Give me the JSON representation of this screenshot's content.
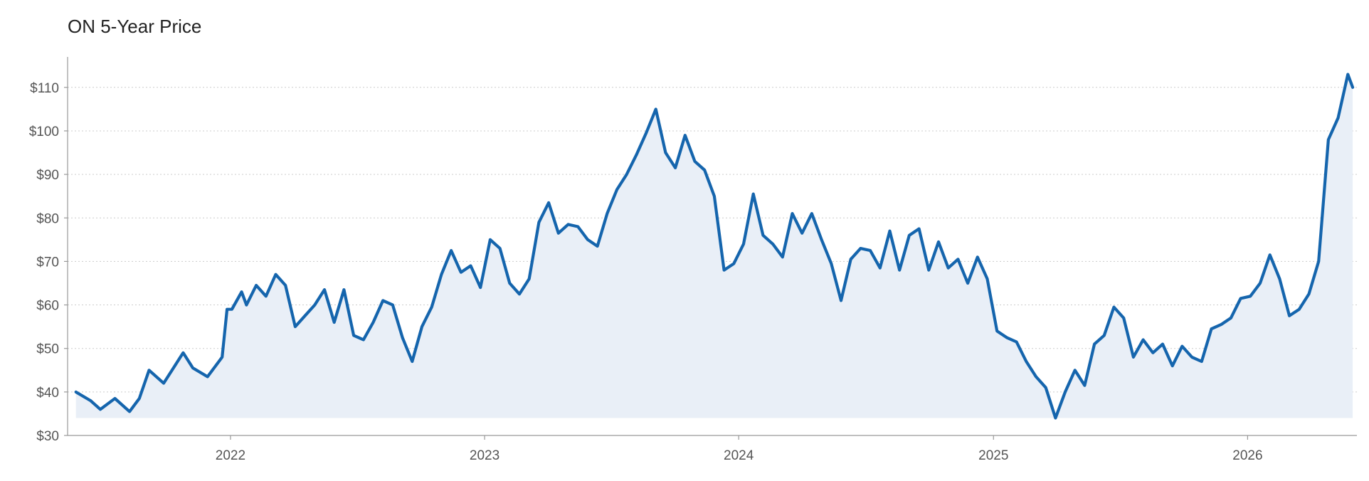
{
  "chart_data": {
    "type": "area",
    "title": "ON 5-Year Price",
    "xlabel": "",
    "ylabel": "",
    "ylim": [
      30,
      117
    ],
    "y_ticks": [
      {
        "value": 30,
        "label": "$30"
      },
      {
        "value": 40,
        "label": "$40"
      },
      {
        "value": 50,
        "label": "$50"
      },
      {
        "value": 60,
        "label": "$60"
      },
      {
        "value": 70,
        "label": "$70"
      },
      {
        "value": 80,
        "label": "$80"
      },
      {
        "value": 90,
        "label": "$90"
      },
      {
        "value": 100,
        "label": "$100"
      },
      {
        "value": 110,
        "label": "$110"
      }
    ],
    "xlim": [
      "2021-05-12",
      "2026-06-07"
    ],
    "x_ticks": [
      {
        "value": "2022-01-01",
        "label": "2022"
      },
      {
        "value": "2023-01-01",
        "label": "2023"
      },
      {
        "value": "2024-01-01",
        "label": "2024"
      },
      {
        "value": "2025-01-01",
        "label": "2025"
      },
      {
        "value": "2026-01-01",
        "label": "2026"
      }
    ],
    "grid": "horizontal",
    "colors": {
      "line": "#1565ad",
      "fill": "#e9eff7",
      "grid": "#cccccc",
      "axis": "#999999",
      "text": "#555555"
    },
    "series": [
      {
        "name": "",
        "points": [
          [
            "2021-05-24",
            40
          ],
          [
            "2021-06-14",
            38
          ],
          [
            "2021-06-28",
            36
          ],
          [
            "2021-07-19",
            38.5
          ],
          [
            "2021-08-09",
            35.5
          ],
          [
            "2021-08-23",
            38.5
          ],
          [
            "2021-09-06",
            45
          ],
          [
            "2021-09-27",
            42
          ],
          [
            "2021-10-11",
            45.5
          ],
          [
            "2021-10-25",
            49
          ],
          [
            "2021-11-08",
            45.5
          ],
          [
            "2021-11-29",
            43.5
          ],
          [
            "2021-12-20",
            48
          ],
          [
            "2021-12-27",
            59
          ],
          [
            "2022-01-03",
            59
          ],
          [
            "2022-01-17",
            63
          ],
          [
            "2022-01-24",
            60
          ],
          [
            "2022-02-07",
            64.5
          ],
          [
            "2022-02-21",
            62
          ],
          [
            "2022-03-07",
            67
          ],
          [
            "2022-03-21",
            64.5
          ],
          [
            "2022-04-04",
            55
          ],
          [
            "2022-04-18",
            57.5
          ],
          [
            "2022-05-02",
            60
          ],
          [
            "2022-05-16",
            63.5
          ],
          [
            "2022-05-30",
            56
          ],
          [
            "2022-06-13",
            63.5
          ],
          [
            "2022-06-27",
            53
          ],
          [
            "2022-07-11",
            52
          ],
          [
            "2022-07-25",
            56
          ],
          [
            "2022-08-08",
            61
          ],
          [
            "2022-08-22",
            60
          ],
          [
            "2022-09-05",
            52.5
          ],
          [
            "2022-09-19",
            47
          ],
          [
            "2022-10-03",
            55
          ],
          [
            "2022-10-17",
            59.5
          ],
          [
            "2022-10-31",
            67
          ],
          [
            "2022-11-14",
            72.5
          ],
          [
            "2022-11-28",
            67.5
          ],
          [
            "2022-12-12",
            69
          ],
          [
            "2022-12-26",
            64
          ],
          [
            "2023-01-09",
            75
          ],
          [
            "2023-01-23",
            73
          ],
          [
            "2023-02-06",
            65
          ],
          [
            "2023-02-20",
            62.5
          ],
          [
            "2023-03-06",
            66
          ],
          [
            "2023-03-20",
            79
          ],
          [
            "2023-04-03",
            83.5
          ],
          [
            "2023-04-17",
            76.5
          ],
          [
            "2023-05-01",
            78.5
          ],
          [
            "2023-05-15",
            78
          ],
          [
            "2023-05-29",
            75
          ],
          [
            "2023-06-12",
            73.5
          ],
          [
            "2023-06-26",
            81
          ],
          [
            "2023-07-10",
            86.5
          ],
          [
            "2023-07-24",
            90
          ],
          [
            "2023-08-07",
            94.5
          ],
          [
            "2023-08-21",
            99.5
          ],
          [
            "2023-09-04",
            105
          ],
          [
            "2023-09-18",
            95
          ],
          [
            "2023-10-02",
            91.5
          ],
          [
            "2023-10-16",
            99
          ],
          [
            "2023-10-30",
            93
          ],
          [
            "2023-11-13",
            91
          ],
          [
            "2023-11-27",
            85
          ],
          [
            "2023-12-11",
            68
          ],
          [
            "2023-12-25",
            69.5
          ],
          [
            "2024-01-08",
            74
          ],
          [
            "2024-01-22",
            85.5
          ],
          [
            "2024-02-05",
            76
          ],
          [
            "2024-02-19",
            74
          ],
          [
            "2024-03-04",
            71
          ],
          [
            "2024-03-18",
            81
          ],
          [
            "2024-04-01",
            76.5
          ],
          [
            "2024-04-15",
            81
          ],
          [
            "2024-04-29",
            75
          ],
          [
            "2024-05-13",
            69.5
          ],
          [
            "2024-05-27",
            61
          ],
          [
            "2024-06-10",
            70.5
          ],
          [
            "2024-06-24",
            73
          ],
          [
            "2024-07-08",
            72.5
          ],
          [
            "2024-07-22",
            68.5
          ],
          [
            "2024-08-05",
            77
          ],
          [
            "2024-08-19",
            68
          ],
          [
            "2024-09-02",
            76
          ],
          [
            "2024-09-16",
            77.5
          ],
          [
            "2024-09-30",
            68
          ],
          [
            "2024-10-14",
            74.5
          ],
          [
            "2024-10-28",
            68.5
          ],
          [
            "2024-11-11",
            70.5
          ],
          [
            "2024-11-25",
            65
          ],
          [
            "2024-12-09",
            71
          ],
          [
            "2024-12-23",
            66
          ],
          [
            "2025-01-06",
            54
          ],
          [
            "2025-01-20",
            52.5
          ],
          [
            "2025-02-03",
            51.5
          ],
          [
            "2025-02-17",
            47
          ],
          [
            "2025-03-03",
            43.5
          ],
          [
            "2025-03-17",
            41
          ],
          [
            "2025-03-31",
            34
          ],
          [
            "2025-04-14",
            40
          ],
          [
            "2025-04-28",
            45
          ],
          [
            "2025-05-12",
            41.5
          ],
          [
            "2025-05-26",
            51
          ],
          [
            "2025-06-09",
            53
          ],
          [
            "2025-06-23",
            59.5
          ],
          [
            "2025-07-07",
            57
          ],
          [
            "2025-07-21",
            48
          ],
          [
            "2025-08-04",
            52
          ],
          [
            "2025-08-18",
            49
          ],
          [
            "2025-09-01",
            51
          ],
          [
            "2025-09-15",
            46
          ],
          [
            "2025-09-29",
            50.5
          ],
          [
            "2025-10-13",
            48
          ],
          [
            "2025-10-27",
            47
          ],
          [
            "2025-11-10",
            54.5
          ],
          [
            "2025-11-24",
            55.5
          ],
          [
            "2025-12-08",
            57
          ],
          [
            "2025-12-22",
            61.5
          ],
          [
            "2026-01-05",
            62
          ],
          [
            "2026-01-19",
            65
          ],
          [
            "2026-02-02",
            71.5
          ],
          [
            "2026-02-16",
            66
          ],
          [
            "2026-03-02",
            57.5
          ],
          [
            "2026-03-16",
            59
          ],
          [
            "2026-03-30",
            62.5
          ],
          [
            "2026-04-13",
            70
          ],
          [
            "2026-04-27",
            98
          ],
          [
            "2026-05-11",
            103
          ],
          [
            "2026-05-25",
            113
          ],
          [
            "2026-06-01",
            110
          ]
        ]
      }
    ]
  }
}
